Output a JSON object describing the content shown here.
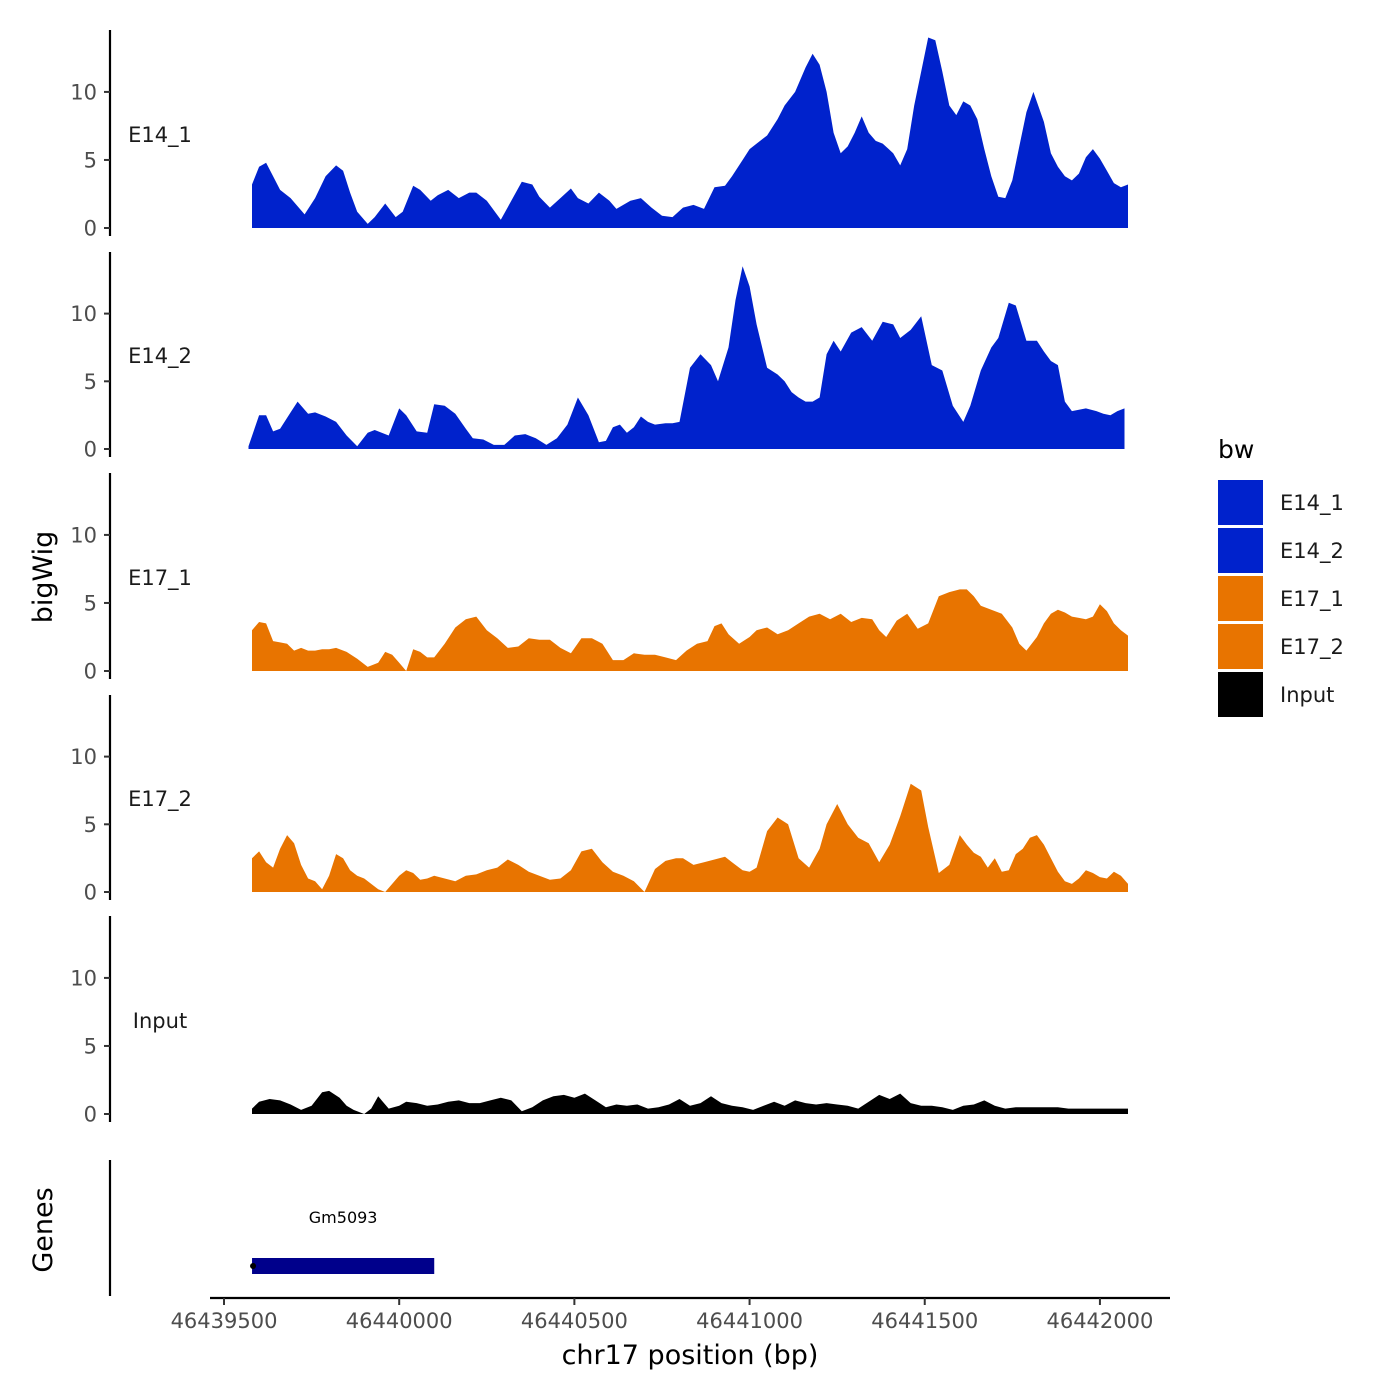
{
  "chart_data": {
    "type": "area",
    "title": "",
    "xlabel": "chr17 position (bp)",
    "ylabel": "bigWig",
    "xlim": [
      46439460,
      46442200
    ],
    "x_ticks": [
      46439500,
      46440000,
      46440500,
      46441000,
      46441500,
      46442000
    ],
    "x_tick_labels": [
      "46439500",
      "46440000",
      "46440500",
      "46441000",
      "46441500",
      "46442000"
    ],
    "ylim": [
      0,
      14.5
    ],
    "y_ticks": [
      0,
      5,
      10
    ],
    "y_tick_labels": [
      "0",
      "5",
      "10"
    ],
    "grid": false,
    "legend": {
      "title": "bw",
      "position": "right",
      "entries": [
        {
          "label": "E14_1",
          "color": "#0022CC"
        },
        {
          "label": "E14_2",
          "color": "#0022CC"
        },
        {
          "label": "E17_1",
          "color": "#E87400"
        },
        {
          "label": "E17_2",
          "color": "#E87400"
        },
        {
          "label": "Input",
          "color": "#000000"
        }
      ]
    },
    "series": [
      {
        "name": "E14_1",
        "color": "#0022CC",
        "x": [
          46439580,
          46439600,
          46439620,
          46439640,
          46439660,
          46439690,
          46439730,
          46439760,
          46439790,
          46439820,
          46439840,
          46439860,
          46439880,
          46439910,
          46439930,
          46439960,
          46439990,
          46440010,
          46440040,
          46440060,
          46440090,
          46440110,
          46440140,
          46440170,
          46440200,
          46440220,
          46440250,
          46440290,
          46440320,
          46440350,
          46440380,
          46440400,
          46440430,
          46440460,
          46440490,
          46440510,
          46440540,
          46440570,
          46440600,
          46440620,
          46440660,
          46440690,
          46440720,
          46440750,
          46440780,
          46440810,
          46440840,
          46440870,
          46440900,
          46440930,
          46440950,
          46440980,
          46441000,
          46441020,
          46441050,
          46441080,
          46441100,
          46441130,
          46441160,
          46441180,
          46441200,
          46441220,
          46441230,
          46441240,
          46441260,
          46441280,
          46441300,
          46441320,
          46441340,
          46441360,
          46441380,
          46441410,
          46441430,
          46441450,
          46441470,
          46441490,
          46441510,
          46441530,
          46441550,
          46441570,
          46441590,
          46441610,
          46441630,
          46441650,
          46441670,
          46441690,
          46441710,
          46441730,
          46441750,
          46441770,
          46441790,
          46441810,
          46441840,
          46441860,
          46441880,
          46441900,
          46441920,
          46441940,
          46441960,
          46441980,
          46442000,
          46442020,
          46442040,
          46442060,
          46442080
        ],
        "values": [
          3.2,
          4.5,
          4.8,
          3.8,
          2.8,
          2.2,
          1.0,
          2.2,
          3.8,
          4.6,
          4.2,
          2.6,
          1.2,
          0.3,
          0.8,
          1.8,
          0.8,
          1.2,
          3.1,
          2.8,
          2.0,
          2.4,
          2.8,
          2.2,
          2.6,
          2.6,
          2.0,
          0.6,
          2.0,
          3.4,
          3.2,
          2.3,
          1.5,
          2.2,
          2.9,
          2.2,
          1.8,
          2.6,
          2.0,
          1.4,
          2.0,
          2.2,
          1.5,
          0.9,
          0.8,
          1.5,
          1.7,
          1.4,
          3.0,
          3.1,
          3.8,
          5.0,
          5.8,
          6.2,
          6.8,
          8.0,
          9.0,
          10.0,
          11.8,
          12.8,
          12.0,
          10.0,
          8.5,
          7.0,
          5.5,
          6.0,
          7.0,
          8.2,
          7.0,
          6.4,
          6.2,
          5.5,
          4.6,
          5.8,
          9.0,
          11.5,
          14.0,
          13.8,
          11.5,
          9.0,
          8.3,
          9.3,
          9.0,
          8.0,
          5.8,
          3.8,
          2.3,
          2.2,
          3.5,
          6.0,
          8.5,
          10.0,
          7.8,
          5.5,
          4.5,
          3.8,
          3.5,
          4.0,
          5.2,
          5.8,
          5.1,
          4.2,
          3.3,
          3.0,
          3.2
        ]
      },
      {
        "name": "E14_2",
        "color": "#0022CC",
        "x": [
          46439570,
          46439600,
          46439620,
          46439640,
          46439660,
          46439690,
          46439710,
          46439740,
          46439760,
          46439790,
          46439820,
          46439850,
          46439880,
          46439910,
          46439930,
          46439950,
          46439970,
          46440000,
          46440020,
          46440050,
          46440080,
          46440100,
          46440130,
          46440160,
          46440190,
          46440210,
          46440240,
          46440270,
          46440300,
          46440330,
          46440360,
          46440390,
          46440420,
          46440450,
          46440480,
          46440510,
          46440540,
          46440570,
          46440590,
          46440610,
          46440630,
          46440650,
          46440670,
          46440690,
          46440710,
          46440730,
          46440760,
          46440780,
          46440800,
          46440830,
          46440860,
          46440890,
          46440910,
          46440940,
          46440960,
          46440980,
          46441000,
          46441020,
          46441050,
          46441080,
          46441100,
          46441120,
          46441140,
          46441160,
          46441180,
          46441200,
          46441220,
          46441240,
          46441260,
          46441290,
          46441320,
          46441350,
          46441380,
          46441410,
          46441430,
          46441460,
          46441490,
          46441520,
          46441550,
          46441580,
          46441610,
          46441630,
          46441660,
          46441690,
          46441710,
          46441740,
          46441760,
          46441790,
          46441820,
          46441840,
          46441860,
          46441880,
          46441900,
          46441920,
          46441940,
          46441960,
          46441990,
          46442010,
          46442030,
          46442050,
          46442070
        ],
        "values": [
          0.2,
          2.5,
          2.5,
          1.3,
          1.5,
          2.7,
          3.5,
          2.6,
          2.7,
          2.4,
          2.0,
          1.0,
          0.2,
          1.2,
          1.4,
          1.2,
          1.0,
          3.0,
          2.5,
          1.3,
          1.2,
          3.3,
          3.2,
          2.6,
          1.5,
          0.8,
          0.7,
          0.3,
          0.3,
          1.0,
          1.1,
          0.8,
          0.3,
          0.8,
          1.8,
          3.8,
          2.5,
          0.5,
          0.6,
          1.6,
          1.8,
          1.2,
          1.6,
          2.4,
          2.0,
          1.8,
          1.9,
          1.9,
          2.0,
          6.0,
          7.0,
          6.2,
          5.0,
          7.5,
          11.0,
          13.5,
          12.0,
          9.2,
          6.0,
          5.5,
          5.0,
          4.2,
          3.8,
          3.5,
          3.5,
          3.8,
          7.0,
          8.0,
          7.2,
          8.6,
          9.0,
          8.0,
          9.4,
          9.2,
          8.2,
          8.8,
          9.8,
          6.2,
          5.8,
          3.2,
          2.0,
          3.2,
          5.8,
          7.5,
          8.2,
          10.8,
          10.6,
          8.0,
          8.0,
          7.2,
          6.5,
          6.2,
          3.5,
          2.8,
          2.9,
          3.0,
          2.8,
          2.6,
          2.5,
          2.8,
          3.0
        ]
      },
      {
        "name": "E17_1",
        "color": "#E87400",
        "x": [
          46439580,
          46439600,
          46439620,
          46439640,
          46439660,
          46439680,
          46439700,
          46439720,
          46439740,
          46439760,
          46439780,
          46439800,
          46439820,
          46439850,
          46439880,
          46439910,
          46439940,
          46439960,
          46439980,
          46440000,
          46440020,
          46440040,
          46440060,
          46440080,
          46440100,
          46440130,
          46440160,
          46440190,
          46440220,
          46440250,
          46440280,
          46440310,
          46440340,
          46440370,
          46440400,
          46440430,
          46440460,
          46440490,
          46440520,
          46440550,
          46440580,
          46440610,
          46440640,
          46440670,
          46440700,
          46440730,
          46440760,
          46440790,
          46440820,
          46440850,
          46440880,
          46440900,
          46440920,
          46440940,
          46440970,
          46441000,
          46441020,
          46441050,
          46441080,
          46441110,
          46441140,
          46441170,
          46441200,
          46441230,
          46441260,
          46441290,
          46441320,
          46441350,
          46441370,
          46441390,
          46441420,
          46441450,
          46441480,
          46441510,
          46441540,
          46441570,
          46441600,
          46441620,
          46441640,
          46441660,
          46441690,
          46441720,
          46441750,
          46441770,
          46441790,
          46441820,
          46441840,
          46441860,
          46441880,
          46441900,
          46441920,
          46441940,
          46441960,
          46441980,
          46442000,
          46442020,
          46442040,
          46442060,
          46442080
        ],
        "values": [
          3.0,
          3.6,
          3.5,
          2.2,
          2.1,
          2.0,
          1.5,
          1.7,
          1.5,
          1.5,
          1.6,
          1.6,
          1.7,
          1.4,
          0.9,
          0.3,
          0.6,
          1.4,
          1.2,
          0.6,
          0.0,
          1.6,
          1.4,
          1.0,
          1.0,
          2.0,
          3.2,
          3.8,
          4.0,
          3.0,
          2.4,
          1.7,
          1.8,
          2.4,
          2.3,
          2.3,
          1.7,
          1.3,
          2.4,
          2.4,
          2.0,
          0.8,
          0.8,
          1.3,
          1.2,
          1.2,
          1.0,
          0.8,
          1.5,
          2.0,
          2.2,
          3.3,
          3.5,
          2.7,
          2.0,
          2.5,
          3.0,
          3.2,
          2.7,
          3.0,
          3.5,
          4.0,
          4.2,
          3.8,
          4.2,
          3.6,
          3.9,
          3.8,
          3.0,
          2.5,
          3.7,
          4.2,
          3.1,
          3.5,
          5.5,
          5.8,
          6.0,
          6.0,
          5.5,
          4.8,
          4.5,
          4.2,
          3.2,
          2.0,
          1.5,
          2.5,
          3.5,
          4.2,
          4.5,
          4.3,
          4.0,
          3.9,
          3.8,
          4.0,
          4.9,
          4.4,
          3.5,
          3.0,
          2.6
        ]
      },
      {
        "name": "E17_2",
        "color": "#E87400",
        "x": [
          46439580,
          46439600,
          46439620,
          46439640,
          46439660,
          46439680,
          46439700,
          46439720,
          46439740,
          46439760,
          46439780,
          46439800,
          46439820,
          46439840,
          46439860,
          46439880,
          46439900,
          46439920,
          46439940,
          46439960,
          46439980,
          46440000,
          46440020,
          46440040,
          46440060,
          46440080,
          46440100,
          46440130,
          46440160,
          46440190,
          46440220,
          46440250,
          46440280,
          46440310,
          46440340,
          46440370,
          46440400,
          46440430,
          46440460,
          46440490,
          46440520,
          46440550,
          46440580,
          46440610,
          46440640,
          46440670,
          46440700,
          46440730,
          46440760,
          46440790,
          46440810,
          46440840,
          46440870,
          46440900,
          46440930,
          46440950,
          46440980,
          46441000,
          46441020,
          46441050,
          46441080,
          46441110,
          46441140,
          46441170,
          46441200,
          46441220,
          46441250,
          46441280,
          46441310,
          46441340,
          46441370,
          46441400,
          46441430,
          46441460,
          46441490,
          46441510,
          46441540,
          46441570,
          46441600,
          46441620,
          46441640,
          46441660,
          46441680,
          46441700,
          46441720,
          46441740,
          46441760,
          46441780,
          46441800,
          46441820,
          46441840,
          46441860,
          46441880,
          46441900,
          46441920,
          46441940,
          46441960,
          46441980,
          46442000,
          46442020,
          46442040,
          46442060,
          46442080
        ],
        "values": [
          2.5,
          3.0,
          2.2,
          1.8,
          3.2,
          4.2,
          3.6,
          2.0,
          1.0,
          0.8,
          0.2,
          1.2,
          2.8,
          2.5,
          1.6,
          1.2,
          1.0,
          0.6,
          0.2,
          0.0,
          0.6,
          1.2,
          1.6,
          1.4,
          0.9,
          1.0,
          1.2,
          1.0,
          0.8,
          1.2,
          1.3,
          1.6,
          1.8,
          2.4,
          2.0,
          1.5,
          1.2,
          0.9,
          1.0,
          1.6,
          3.0,
          3.2,
          2.2,
          1.5,
          1.2,
          0.8,
          0.0,
          1.7,
          2.3,
          2.5,
          2.5,
          2.0,
          2.2,
          2.4,
          2.6,
          2.2,
          1.6,
          1.5,
          1.8,
          4.5,
          5.5,
          5.0,
          2.5,
          1.8,
          3.2,
          5.0,
          6.5,
          5.0,
          4.0,
          3.6,
          2.2,
          3.5,
          5.6,
          8.0,
          7.5,
          4.8,
          1.4,
          2.0,
          4.2,
          3.5,
          2.9,
          2.6,
          1.8,
          2.5,
          1.5,
          1.6,
          2.8,
          3.2,
          4.0,
          4.2,
          3.5,
          2.5,
          1.5,
          0.8,
          0.6,
          1.0,
          1.6,
          1.4,
          1.1,
          1.0,
          1.5,
          1.2,
          0.6
        ]
      },
      {
        "name": "Input",
        "color": "#000000",
        "x": [
          46439580,
          46439600,
          46439630,
          46439660,
          46439690,
          46439720,
          46439750,
          46439780,
          46439800,
          46439830,
          46439850,
          46439870,
          46439900,
          46439920,
          46439940,
          46439970,
          46440000,
          46440020,
          46440050,
          46440080,
          46440110,
          46440140,
          46440170,
          46440200,
          46440230,
          46440260,
          46440290,
          46440320,
          46440350,
          46440380,
          46440410,
          46440440,
          46440470,
          46440500,
          46440530,
          46440560,
          46440590,
          46440620,
          46440650,
          46440680,
          46440710,
          46440740,
          46440770,
          46440800,
          46440830,
          46440860,
          46440890,
          46440920,
          46440950,
          46440980,
          46441010,
          46441040,
          46441070,
          46441100,
          46441130,
          46441160,
          46441190,
          46441220,
          46441250,
          46441280,
          46441310,
          46441340,
          46441370,
          46441400,
          46441430,
          46441460,
          46441490,
          46441520,
          46441550,
          46441580,
          46441610,
          46441640,
          46441670,
          46441700,
          46441730,
          46441760,
          46441790,
          46441820,
          46441850,
          46441880,
          46441910,
          46441940,
          46441970,
          46442000,
          46442030,
          46442060,
          46442080
        ],
        "values": [
          0.4,
          0.9,
          1.1,
          1.0,
          0.7,
          0.3,
          0.6,
          1.6,
          1.7,
          1.2,
          0.6,
          0.3,
          0.0,
          0.4,
          1.3,
          0.4,
          0.6,
          0.9,
          0.8,
          0.6,
          0.7,
          0.9,
          1.0,
          0.8,
          0.8,
          1.0,
          1.2,
          1.0,
          0.2,
          0.5,
          1.0,
          1.3,
          1.4,
          1.2,
          1.5,
          1.0,
          0.5,
          0.7,
          0.6,
          0.7,
          0.4,
          0.5,
          0.7,
          1.1,
          0.6,
          0.8,
          1.3,
          0.8,
          0.6,
          0.5,
          0.3,
          0.6,
          0.9,
          0.6,
          1.0,
          0.8,
          0.7,
          0.8,
          0.7,
          0.6,
          0.4,
          0.9,
          1.4,
          1.1,
          1.5,
          0.8,
          0.6,
          0.6,
          0.5,
          0.3,
          0.6,
          0.7,
          1.0,
          0.6,
          0.4,
          0.5,
          0.5,
          0.5,
          0.5,
          0.5,
          0.4,
          0.4,
          0.4,
          0.4,
          0.4,
          0.4,
          0.4
        ]
      }
    ],
    "genes": {
      "axis_label": "Genes",
      "items": [
        {
          "name": "Gm5093",
          "start": 46439580,
          "end": 46440100,
          "color": "#00008B"
        }
      ]
    }
  }
}
